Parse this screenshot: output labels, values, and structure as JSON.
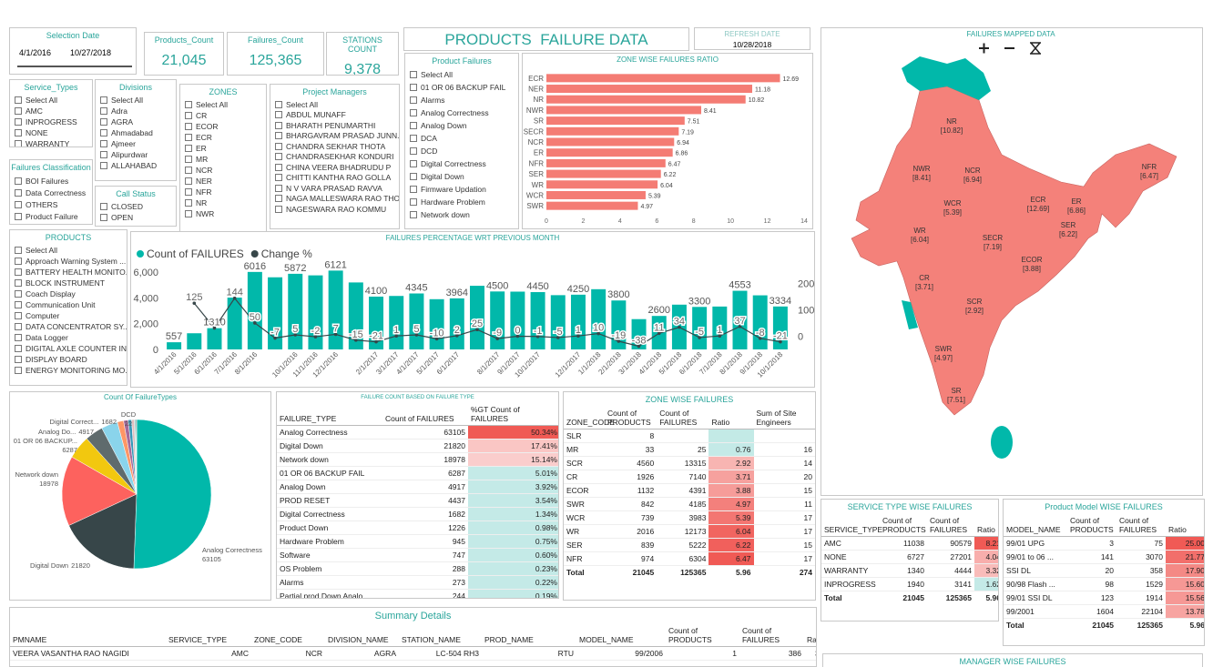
{
  "header": {
    "title": "PRODUCTS  FAILURE DATA",
    "refresh_label": "REFRESH DATE",
    "refresh_date": "10/28/2018",
    "manager_title": "MANAGER WISE FAILURES"
  },
  "selection_date": {
    "title": "Selection Date",
    "start": "4/1/2016",
    "end": "10/27/2018"
  },
  "cards": [
    {
      "label": "Products_Count",
      "value": "21,045"
    },
    {
      "label": "Failures_Count",
      "value": "125,365"
    },
    {
      "label": "STATIONS COUNT",
      "value": "9,378"
    }
  ],
  "slicers": [
    {
      "title": "Service_Types",
      "items": [
        "Select All",
        "AMC",
        "INPROGRESS",
        "NONE",
        "WARRANTY"
      ]
    },
    {
      "title": "Divisions",
      "items": [
        "Select All",
        "Adra",
        "AGRA",
        "Ahmadabad",
        "Ajmeer",
        "Alipurdwar",
        "ALLAHABAD"
      ]
    },
    {
      "title": "ZONES",
      "items": [
        "Select All",
        "CR",
        "ECOR",
        "ECR",
        "ER",
        "MR",
        "NCR",
        "NER",
        "NFR",
        "NR",
        "NWR"
      ]
    },
    {
      "title": "Project Managers",
      "items": [
        "Select All",
        "ABDUL MUNAFF",
        "BHARATH PENUMARTHI",
        "BHARGAVRAM PRASAD JUNN...",
        "CHANDRA SEKHAR THOTA",
        "CHANDRASEKHAR KONDURI",
        "CHINA VEERA BHADRUDU P",
        "CHITTI KANTHA RAO GOLLA",
        "N V VARA PRASAD RAVVA",
        "NAGA MALLESWARA RAO THO...",
        "NAGESWARA RAO KOMMU"
      ]
    },
    {
      "title": "Product Failures",
      "items": [
        "Select All",
        "01 OR 06 BACKUP FAIL",
        "Alarms",
        "Analog Correctness",
        "Analog Down",
        "DCA",
        "DCD",
        "Digital Correctness",
        "Digital Down",
        "Firmware Updation",
        "Hardware Problem",
        "Network down"
      ]
    },
    {
      "title": "Failures Classification",
      "items": [
        "BOI Failures",
        "Data Correctness",
        "OTHERS",
        "Product Failure"
      ]
    },
    {
      "title": "Call Status",
      "items": [
        "CLOSED",
        "OPEN"
      ]
    },
    {
      "title": "PRODUCTS",
      "items": [
        "Select All",
        "Approach Warning System ...",
        "BATTERY HEALTH MONITO...",
        "BLOCK INSTRUMENT",
        "Coach Display",
        "Communication Unit",
        "Computer",
        "DATA CONCENTRATOR SY...",
        "Data Logger",
        "DIGITAL AXLE COUNTER IN...",
        "DISPLAY BOARD",
        "ENERGY MONITORING MO..."
      ]
    }
  ],
  "chart_data": [
    {
      "type": "bar",
      "orientation": "horizontal",
      "title": "ZONE WISE FAILURES RATIO",
      "categories": [
        "ECR",
        "NER",
        "NR",
        "NWR",
        "SR",
        "SECR",
        "NCR",
        "ER",
        "NFR",
        "SER",
        "WR",
        "WCR",
        "SWR"
      ],
      "values": [
        12.69,
        11.18,
        10.82,
        8.41,
        7.51,
        7.19,
        6.94,
        6.86,
        6.47,
        6.22,
        6.04,
        5.39,
        4.97
      ],
      "color": "#f47c74",
      "xlim": [
        0,
        14
      ],
      "xticks": [
        0,
        2,
        4,
        6,
        8,
        10,
        12,
        14
      ],
      "grid": false
    },
    {
      "type": "combo",
      "title": "FAILURES PERCENTAGE WRT PREVIOUS MONTH",
      "categories": [
        "4/1/2016",
        "5/1/2016",
        "6/1/2016",
        "7/1/2016",
        "8/1/2016",
        null,
        "10/1/2016",
        "11/1/2016",
        "12/1/2016",
        null,
        "2/1/2017",
        "3/1/2017",
        "4/1/2017",
        "5/1/2017",
        "6/1/2017",
        null,
        "8/1/2017",
        "9/1/2017",
        "10/1/2017",
        null,
        "12/1/2017",
        "1/1/2018",
        "2/1/2018",
        "3/1/2018",
        "4/1/2018",
        "5/1/2018",
        "6/1/2018",
        "7/1/2018",
        "8/1/2018",
        "9/1/2018",
        "10/1/2018"
      ],
      "series": [
        {
          "name": "Count of FAILURES",
          "color": "#01b8aa",
          "values": [
            557,
            1255,
            1650,
            4023,
            6016,
            5600,
            5872,
            5750,
            6121,
            5200,
            4100,
            4152,
            4345,
            3900,
            3964,
            4941,
            4500,
            4487,
            4450,
            4213,
            4250,
            4675,
            3800,
            2352,
            2600,
            3476,
            3300,
            3330,
            4553,
            4200,
            3334
          ]
        },
        {
          "name": "Change %",
          "color": "#374649",
          "axis": "y2",
          "values": [
            null,
            125,
            31,
            144,
            50,
            -7,
            5,
            -2,
            7,
            -15,
            -21,
            1,
            5,
            -10,
            2,
            25,
            -9,
            0,
            -1,
            -5,
            1,
            10,
            -19,
            -38,
            11,
            34,
            -5,
            1,
            37,
            -8,
            -21
          ]
        }
      ],
      "ylim": [
        0,
        6500
      ],
      "yticks": [
        0,
        {
          "value": 2000,
          "label": "2,000"
        },
        {
          "value": 4000,
          "label": "4,000"
        },
        {
          "value": 6000,
          "label": "6,000"
        }
      ],
      "y2lim": [
        -50,
        267
      ],
      "y2ticks": [
        0,
        100,
        200
      ],
      "legend": "top-left",
      "grid": false
    },
    {
      "type": "pie",
      "title": "Count Of FailureTypes",
      "categories": [
        "Analog Correctness",
        "Digital Down",
        "Network down",
        "01 OR 06 BACKUP...",
        "Analog Do...",
        null,
        "Digital Correct...",
        null,
        null,
        null,
        null,
        null,
        "DCD"
      ],
      "values": [
        63105,
        21820,
        18978,
        6287,
        4917,
        4437,
        1682,
        1226,
        945,
        747,
        288,
        273,
        22
      ],
      "colors": [
        "#01b8aa",
        "#374649",
        "#fd625e",
        "#f2c80f",
        "#5f6b6d",
        "#8ad4eb",
        "#fe9666",
        "#a66999",
        "#3599b8",
        "#dfbfbf",
        "#4ac5bb",
        "#5f6b6d",
        "#fb8281"
      ]
    }
  ],
  "map": {
    "title": "FAILURES MAPPED DATA",
    "labels": [
      {
        "zone": "NR",
        "ratio": "[10.82]"
      },
      {
        "zone": "NWR",
        "ratio": "[8.41]"
      },
      {
        "zone": "NCR",
        "ratio": "[6.94]"
      },
      {
        "zone": "NFR",
        "ratio": "[6.47]"
      },
      {
        "zone": "WCR",
        "ratio": "[5.39]"
      },
      {
        "zone": "ECR",
        "ratio": "[12.69]"
      },
      {
        "zone": "ER",
        "ratio": "[6.86]"
      },
      {
        "zone": "SER",
        "ratio": "[6.22]"
      },
      {
        "zone": "WR",
        "ratio": "[6.04]"
      },
      {
        "zone": "SECR",
        "ratio": "[7.19]"
      },
      {
        "zone": "ECOR",
        "ratio": "[3.88]"
      },
      {
        "zone": "CR",
        "ratio": "[3.71]"
      },
      {
        "zone": "SCR",
        "ratio": "[2.92]"
      },
      {
        "zone": "SWR",
        "ratio": "[4.97]"
      },
      {
        "zone": "SR",
        "ratio": "[7.51]"
      }
    ]
  },
  "tables": {
    "failure_count": {
      "title": "FAILURE COUNT BASED ON FAILURE TYPE",
      "columns": [
        "FAILURE_TYPE",
        "Count of FAILURES",
        "%GT Count of FAILURES"
      ],
      "rows": [
        [
          "Analog Correctness",
          "63105",
          "50.34%"
        ],
        [
          "Digital Down",
          "21820",
          "17.41%"
        ],
        [
          "Network down",
          "18978",
          "15.14%"
        ],
        [
          "01 OR 06 BACKUP FAIL",
          "6287",
          "5.01%"
        ],
        [
          "Analog Down",
          "4917",
          "3.92%"
        ],
        [
          "PROD RESET",
          "4437",
          "3.54%"
        ],
        [
          "Digital Correctness",
          "1682",
          "1.34%"
        ],
        [
          "Product Down",
          "1226",
          "0.98%"
        ],
        [
          "Hardware Problem",
          "945",
          "0.75%"
        ],
        [
          "Software",
          "747",
          "0.60%"
        ],
        [
          "OS Problem",
          "288",
          "0.23%"
        ],
        [
          "Alarms",
          "273",
          "0.22%"
        ],
        [
          "Partial prod Down Analo...",
          "244",
          "0.19%"
        ]
      ],
      "total": [
        "Total",
        "125365",
        "100.00%"
      ]
    },
    "zone_wise": {
      "title": "ZONE WISE FAILURES",
      "columns": [
        "ZONE_CODE",
        "Count of PRODUCTS",
        "Count of FAILURES",
        "Ratio",
        "Sum of Site Engineers"
      ],
      "rows": [
        [
          "SLR",
          "8",
          null,
          null,
          null
        ],
        [
          "MR",
          "33",
          "25",
          "0.76",
          "16"
        ],
        [
          "SCR",
          "4560",
          "13315",
          "2.92",
          "14"
        ],
        [
          "CR",
          "1926",
          "7140",
          "3.71",
          "20"
        ],
        [
          "ECOR",
          "1132",
          "4391",
          "3.88",
          "15"
        ],
        [
          "SWR",
          "842",
          "4185",
          "4.97",
          "11"
        ],
        [
          "WCR",
          "739",
          "3983",
          "5.39",
          "17"
        ],
        [
          "WR",
          "2016",
          "12173",
          "6.04",
          "17"
        ],
        [
          "SER",
          "839",
          "5222",
          "6.22",
          "15"
        ],
        [
          "NFR",
          "974",
          "6304",
          "6.47",
          "17"
        ]
      ],
      "total": [
        "Total",
        "21045",
        "125365",
        "5.96",
        "274"
      ]
    },
    "service_type": {
      "title": "SERVICE TYPE WISE FAILURES",
      "columns": [
        "SERVICE_TYPE",
        "Count of PRODUCTS",
        "Count of FAILURES",
        "Ratio"
      ],
      "rows": [
        [
          "AMC",
          "11038",
          "90579",
          "8.21"
        ],
        [
          "NONE",
          "6727",
          "27201",
          "4.04"
        ],
        [
          "WARRANTY",
          "1340",
          "4444",
          "3.32"
        ],
        [
          "INPROGRESS",
          "1940",
          "3141",
          "1.62"
        ]
      ],
      "total": [
        "Total",
        "21045",
        "125365",
        "5.96"
      ]
    },
    "model": {
      "title": "Product Model WISE FAILURES",
      "columns": [
        "MODEL_NAME",
        "Count of PRODUCTS",
        "Count of FAILURES",
        "Ratio"
      ],
      "rows": [
        [
          "99/01 UPG",
          "3",
          "75",
          "25.00"
        ],
        [
          "99/01 to 06 ...",
          "141",
          "3070",
          "21.77"
        ],
        [
          "SSI DL",
          "20",
          "358",
          "17.90"
        ],
        [
          "90/98 Flash ...",
          "98",
          "1529",
          "15.60"
        ],
        [
          "99/01 SSI DL",
          "123",
          "1914",
          "15.56"
        ],
        [
          "99/2001",
          "1604",
          "22104",
          "13.78"
        ]
      ],
      "total": [
        "Total",
        "21045",
        "125365",
        "5.96"
      ]
    },
    "summary": {
      "title": "Summary Details",
      "columns": [
        "PMNAME",
        "SERVICE_TYPE",
        "ZONE_CODE",
        "DIVISION_NAME",
        "STATION_NAME",
        "PROD_NAME",
        "MODEL_NAME",
        "Count of PRODUCTS",
        "Count of FAILURES",
        "Ratio"
      ],
      "rows": [
        [
          "VEERA VASANTHA RAO NAGIDI",
          "AMC",
          "NCR",
          "AGRA",
          "LC-504 RH3",
          "RTU",
          "99/2006",
          "1",
          "386",
          "386.00"
        ]
      ]
    }
  }
}
